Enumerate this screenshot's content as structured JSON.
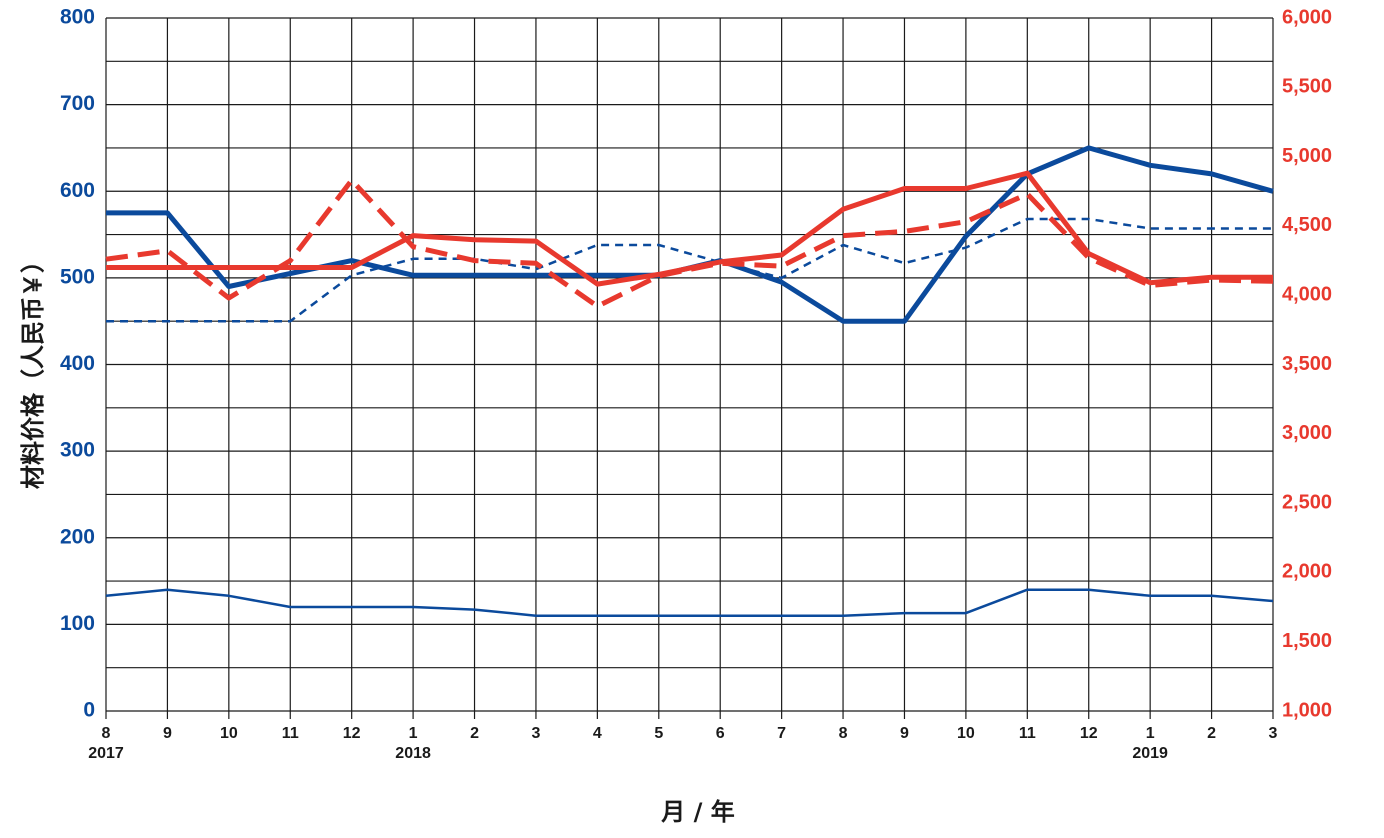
{
  "chart_data": {
    "type": "line",
    "title": "",
    "xlabel": "月 / 年",
    "ylabel": "材料价格（人民币￥）",
    "grid": true,
    "colors": {
      "blue": "#0b4a9c",
      "red": "#e8392e",
      "grid": "#1a1a1a"
    },
    "x_ticks": [
      {
        "label": "8",
        "year": "2017"
      },
      {
        "label": "9",
        "year": ""
      },
      {
        "label": "10",
        "year": ""
      },
      {
        "label": "11",
        "year": ""
      },
      {
        "label": "12",
        "year": ""
      },
      {
        "label": "1",
        "year": "2018"
      },
      {
        "label": "2",
        "year": ""
      },
      {
        "label": "3",
        "year": ""
      },
      {
        "label": "4",
        "year": ""
      },
      {
        "label": "5",
        "year": ""
      },
      {
        "label": "6",
        "year": ""
      },
      {
        "label": "7",
        "year": ""
      },
      {
        "label": "8",
        "year": ""
      },
      {
        "label": "9",
        "year": ""
      },
      {
        "label": "10",
        "year": ""
      },
      {
        "label": "11",
        "year": ""
      },
      {
        "label": "12",
        "year": ""
      },
      {
        "label": "1",
        "year": "2019"
      },
      {
        "label": "2",
        "year": ""
      },
      {
        "label": "3",
        "year": ""
      }
    ],
    "y_left": {
      "range": [
        0,
        800
      ],
      "ticks": [
        "0",
        "100",
        "200",
        "300",
        "400",
        "500",
        "600",
        "700",
        "800"
      ],
      "tick_values": [
        0,
        100,
        200,
        300,
        400,
        500,
        600,
        700,
        800
      ],
      "color": "#0b4a9c"
    },
    "y_right": {
      "range": [
        1000,
        6000
      ],
      "ticks": [
        "1,000",
        "1,500",
        "2,000",
        "2,500",
        "3,000",
        "3,500",
        "4,000",
        "4,500",
        "5,000",
        "5,500",
        "6,000"
      ],
      "tick_values": [
        1000,
        1500,
        2000,
        2500,
        3000,
        3500,
        4000,
        4500,
        5000,
        5500,
        6000
      ],
      "color": "#e8392e"
    },
    "series": [
      {
        "axis": "left",
        "color": "#0b4a9c",
        "width": 5,
        "dash": "",
        "values": [
          575,
          575,
          490,
          505,
          520,
          503,
          503,
          503,
          503,
          503,
          520,
          495,
          450,
          450,
          548,
          620,
          650,
          630,
          620,
          600
        ]
      },
      {
        "axis": "left",
        "color": "#0b4a9c",
        "width": 2.5,
        "dash": "8,6",
        "values": [
          450,
          450,
          450,
          450,
          503,
          522,
          522,
          510,
          538,
          538,
          518,
          500,
          538,
          517,
          535,
          568,
          568,
          557,
          557,
          557
        ]
      },
      {
        "axis": "left",
        "color": "#0b4a9c",
        "width": 2.5,
        "dash": "",
        "values": [
          133,
          140,
          133,
          120,
          120,
          120,
          117,
          110,
          110,
          110,
          110,
          110,
          110,
          113,
          113,
          140,
          140,
          133,
          133,
          127
        ]
      },
      {
        "axis": "right",
        "color": "#e8392e",
        "width": 5,
        "dash": "",
        "values": [
          4200,
          4200,
          4200,
          4200,
          4200,
          4430,
          4400,
          4390,
          4080,
          4150,
          4240,
          4290,
          4620,
          4770,
          4770,
          4880,
          4300,
          4090,
          4130,
          4130
        ]
      },
      {
        "axis": "right",
        "color": "#e8392e",
        "width": 5,
        "dash": "22,10",
        "values": [
          4260,
          4320,
          3980,
          4250,
          4830,
          4350,
          4250,
          4230,
          3920,
          4140,
          4230,
          4210,
          4430,
          4460,
          4530,
          4730,
          4270,
          4070,
          4110,
          4100
        ]
      }
    ]
  }
}
